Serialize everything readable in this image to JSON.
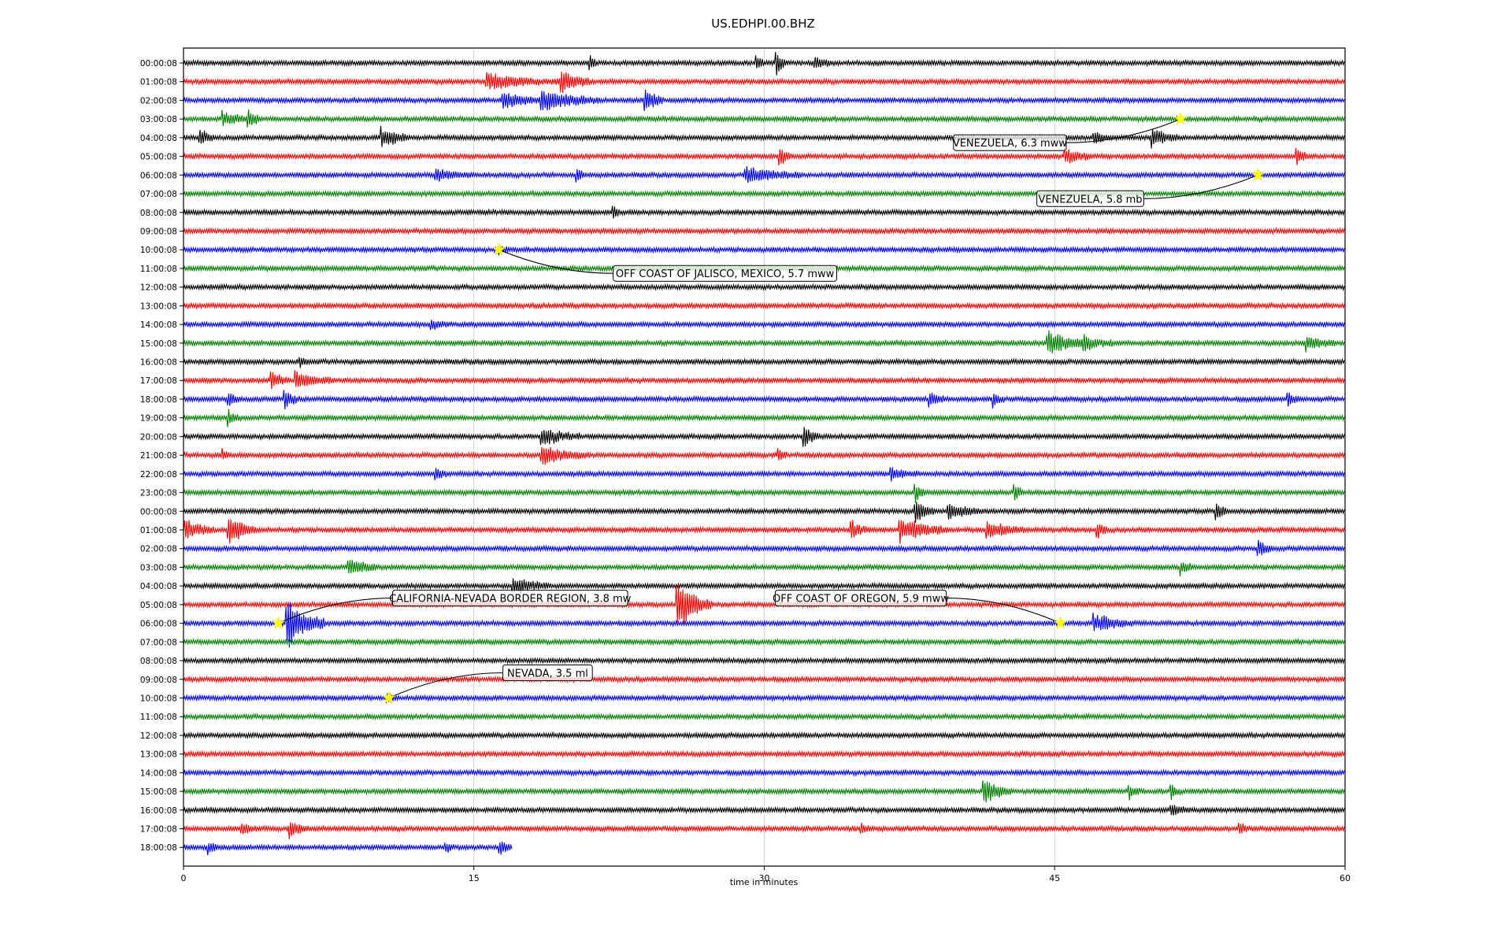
{
  "chart_data": {
    "type": "line",
    "title": "US.EDHPI.00.BHZ",
    "xlabel": "time in minutes",
    "ylabel": "",
    "xlim": [
      0,
      60
    ],
    "x_ticks": [
      0,
      15,
      30,
      45,
      60
    ],
    "grid": "vertical lines at x ticks",
    "trace_colors": [
      "#000000",
      "#ff0000",
      "#0000ff",
      "#008000"
    ],
    "row_labels": [
      "00:00:08",
      "01:00:08",
      "02:00:08",
      "03:00:08",
      "04:00:08",
      "05:00:08",
      "06:00:08",
      "07:00:08",
      "08:00:08",
      "09:00:08",
      "10:00:08",
      "11:00:08",
      "12:00:08",
      "13:00:08",
      "14:00:08",
      "15:00:08",
      "16:00:08",
      "17:00:08",
      "18:00:08",
      "19:00:08",
      "20:00:08",
      "21:00:08",
      "22:00:08",
      "23:00:08",
      "00:00:08",
      "01:00:08",
      "02:00:08",
      "03:00:08",
      "04:00:08",
      "05:00:08",
      "06:00:08",
      "07:00:08",
      "08:00:08",
      "09:00:08",
      "10:00:08",
      "11:00:08",
      "12:00:08",
      "13:00:08",
      "14:00:08",
      "15:00:08",
      "16:00:08",
      "17:00:08",
      "18:00:08"
    ],
    "last_row_end_minute": 17,
    "bursts": [
      {
        "row": 0,
        "minute": 21,
        "amp": 0.7,
        "dur": 0.3
      },
      {
        "row": 0,
        "minute": 29.6,
        "amp": 0.6,
        "dur": 0.4
      },
      {
        "row": 0,
        "minute": 30.6,
        "amp": 0.9,
        "dur": 0.5
      },
      {
        "row": 0,
        "minute": 32.6,
        "amp": 0.5,
        "dur": 0.8
      },
      {
        "row": 1,
        "minute": 15.6,
        "amp": 0.5,
        "dur": 4.0
      },
      {
        "row": 1,
        "minute": 19.5,
        "amp": 0.9,
        "dur": 1.5
      },
      {
        "row": 2,
        "minute": 16.5,
        "amp": 0.6,
        "dur": 2.0
      },
      {
        "row": 2,
        "minute": 18.5,
        "amp": 0.8,
        "dur": 3.0
      },
      {
        "row": 2,
        "minute": 23.8,
        "amp": 1.0,
        "dur": 1.0
      },
      {
        "row": 3,
        "minute": 2.0,
        "amp": 0.5,
        "dur": 1.5
      },
      {
        "row": 3,
        "minute": 3.3,
        "amp": 0.6,
        "dur": 0.8
      },
      {
        "row": 4,
        "minute": 0.8,
        "amp": 0.6,
        "dur": 0.8
      },
      {
        "row": 4,
        "minute": 10.2,
        "amp": 0.8,
        "dur": 1.5
      },
      {
        "row": 4,
        "minute": 47.0,
        "amp": 0.5,
        "dur": 0.8
      },
      {
        "row": 4,
        "minute": 50.0,
        "amp": 0.6,
        "dur": 1.5
      },
      {
        "row": 5,
        "minute": 30.8,
        "amp": 0.6,
        "dur": 0.6
      },
      {
        "row": 5,
        "minute": 45.5,
        "amp": 0.5,
        "dur": 1.5
      },
      {
        "row": 5,
        "minute": 57.5,
        "amp": 0.5,
        "dur": 0.6
      },
      {
        "row": 6,
        "minute": 13.0,
        "amp": 0.4,
        "dur": 2.0
      },
      {
        "row": 6,
        "minute": 20.3,
        "amp": 0.4,
        "dur": 0.5
      },
      {
        "row": 6,
        "minute": 29.0,
        "amp": 0.6,
        "dur": 3.0
      },
      {
        "row": 8,
        "minute": 22.2,
        "amp": 0.4,
        "dur": 0.3
      },
      {
        "row": 10,
        "minute": 16.3,
        "amp": 0.3,
        "dur": 0.5
      },
      {
        "row": 14,
        "minute": 12.8,
        "amp": 0.3,
        "dur": 1.2
      },
      {
        "row": 15,
        "minute": 44.6,
        "amp": 1.0,
        "dur": 2.0
      },
      {
        "row": 15,
        "minute": 46.5,
        "amp": 0.5,
        "dur": 1.5
      },
      {
        "row": 15,
        "minute": 58.0,
        "amp": 0.5,
        "dur": 1.5
      },
      {
        "row": 16,
        "minute": 6.0,
        "amp": 0.4,
        "dur": 0.5
      },
      {
        "row": 17,
        "minute": 4.5,
        "amp": 0.6,
        "dur": 1.0
      },
      {
        "row": 17,
        "minute": 5.8,
        "amp": 0.6,
        "dur": 2.0
      },
      {
        "row": 18,
        "minute": 2.3,
        "amp": 0.5,
        "dur": 0.6
      },
      {
        "row": 18,
        "minute": 5.2,
        "amp": 0.6,
        "dur": 0.8
      },
      {
        "row": 18,
        "minute": 38.5,
        "amp": 0.6,
        "dur": 0.8
      },
      {
        "row": 18,
        "minute": 41.8,
        "amp": 0.5,
        "dur": 0.6
      },
      {
        "row": 18,
        "minute": 57.0,
        "amp": 0.5,
        "dur": 0.6
      },
      {
        "row": 19,
        "minute": 2.3,
        "amp": 0.5,
        "dur": 0.6
      },
      {
        "row": 20,
        "minute": 18.5,
        "amp": 0.6,
        "dur": 2.0
      },
      {
        "row": 20,
        "minute": 32.0,
        "amp": 0.8,
        "dur": 0.8
      },
      {
        "row": 21,
        "minute": 2.0,
        "amp": 0.4,
        "dur": 0.5
      },
      {
        "row": 21,
        "minute": 18.5,
        "amp": 0.6,
        "dur": 2.5
      },
      {
        "row": 21,
        "minute": 30.7,
        "amp": 0.5,
        "dur": 0.5
      },
      {
        "row": 22,
        "minute": 13.0,
        "amp": 0.4,
        "dur": 0.6
      },
      {
        "row": 22,
        "minute": 36.5,
        "amp": 0.4,
        "dur": 1.5
      },
      {
        "row": 23,
        "minute": 37.8,
        "amp": 0.6,
        "dur": 0.5
      },
      {
        "row": 23,
        "minute": 42.9,
        "amp": 0.6,
        "dur": 0.5
      },
      {
        "row": 24,
        "minute": 37.8,
        "amp": 0.9,
        "dur": 1.0
      },
      {
        "row": 24,
        "minute": 39.5,
        "amp": 0.5,
        "dur": 2.0
      },
      {
        "row": 24,
        "minute": 53.3,
        "amp": 0.8,
        "dur": 0.6
      },
      {
        "row": 25,
        "minute": 0.1,
        "amp": 0.8,
        "dur": 1.5
      },
      {
        "row": 25,
        "minute": 2.3,
        "amp": 1.0,
        "dur": 1.5
      },
      {
        "row": 25,
        "minute": 34.5,
        "amp": 0.6,
        "dur": 1.0
      },
      {
        "row": 25,
        "minute": 37.0,
        "amp": 0.9,
        "dur": 2.5
      },
      {
        "row": 25,
        "minute": 41.5,
        "amp": 0.6,
        "dur": 2.0
      },
      {
        "row": 25,
        "minute": 47.2,
        "amp": 0.6,
        "dur": 0.5
      },
      {
        "row": 26,
        "minute": 55.5,
        "amp": 0.7,
        "dur": 0.8
      },
      {
        "row": 27,
        "minute": 8.5,
        "amp": 0.6,
        "dur": 1.5
      },
      {
        "row": 27,
        "minute": 51.5,
        "amp": 0.5,
        "dur": 0.6
      },
      {
        "row": 28,
        "minute": 17.0,
        "amp": 0.6,
        "dur": 2.0
      },
      {
        "row": 29,
        "minute": 25.5,
        "amp": 1.8,
        "dur": 1.8
      },
      {
        "row": 30,
        "minute": 5.3,
        "amp": 1.8,
        "dur": 2.0
      },
      {
        "row": 30,
        "minute": 47.0,
        "amp": 0.6,
        "dur": 2.0
      },
      {
        "row": 34,
        "minute": 10.5,
        "amp": 0.4,
        "dur": 0.5
      },
      {
        "row": 39,
        "minute": 41.3,
        "amp": 0.9,
        "dur": 1.5
      },
      {
        "row": 39,
        "minute": 48.8,
        "amp": 0.6,
        "dur": 0.6
      },
      {
        "row": 39,
        "minute": 51.0,
        "amp": 0.5,
        "dur": 0.5
      },
      {
        "row": 40,
        "minute": 51.0,
        "amp": 0.5,
        "dur": 1.0
      },
      {
        "row": 41,
        "minute": 3.0,
        "amp": 0.4,
        "dur": 0.8
      },
      {
        "row": 41,
        "minute": 5.5,
        "amp": 0.6,
        "dur": 1.0
      },
      {
        "row": 41,
        "minute": 35.0,
        "amp": 0.4,
        "dur": 0.5
      },
      {
        "row": 41,
        "minute": 54.5,
        "amp": 0.4,
        "dur": 0.5
      },
      {
        "row": 42,
        "minute": 1.3,
        "amp": 0.4,
        "dur": 0.5
      },
      {
        "row": 42,
        "minute": 13.5,
        "amp": 0.4,
        "dur": 0.5
      },
      {
        "row": 42,
        "minute": 16.3,
        "amp": 0.5,
        "dur": 0.6
      }
    ],
    "events": [
      {
        "label": "VENEZUELA, 6.3 mww",
        "row": 3,
        "minute": 51.5
      },
      {
        "label": "VENEZUELA, 5.8 mb",
        "row": 6,
        "minute": 55.5
      },
      {
        "label": "OFF COAST OF JALISCO, MEXICO, 5.7 mww",
        "row": 10,
        "minute": 16.3
      },
      {
        "label": "CALIFORNIA-NEVADA BORDER REGION, 3.8 mw",
        "row": 30,
        "minute": 4.9
      },
      {
        "label": "OFF COAST OF OREGON, 5.9 mww",
        "row": 30,
        "minute": 45.3
      },
      {
        "label": "NEVADA, 3.5 ml",
        "row": 34,
        "minute": 10.6
      }
    ]
  }
}
